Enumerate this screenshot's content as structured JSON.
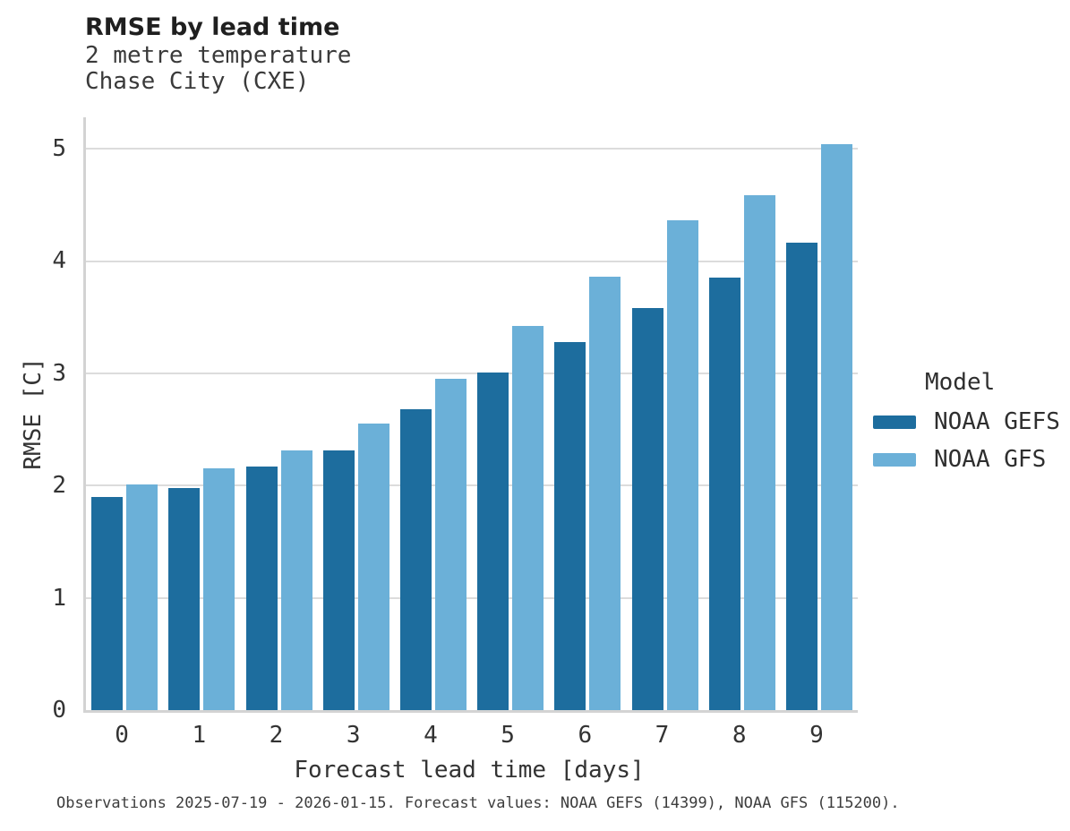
{
  "header": {
    "title": "RMSE by lead time",
    "subtitle_line1": "2 metre temperature",
    "subtitle_line2": "Chase City (CXE)"
  },
  "legend": {
    "title": "Model",
    "items": [
      {
        "label": "NOAA GEFS",
        "color": "#1d6d9e"
      },
      {
        "label": "NOAA GFS",
        "color": "#6bb0d8"
      }
    ]
  },
  "footer_note": "Observations 2025-07-19 - 2026-01-15. Forecast values: NOAA GEFS (14399), NOAA GFS (115200).",
  "colors": {
    "gefs_bar": "#1d6d9e",
    "gfs_bar": "#6bb0d8",
    "gridline": "#dcdcdc",
    "spine": "#d3d3d3",
    "text": "#2e2e2e"
  },
  "chart_data": {
    "type": "bar",
    "title": "RMSE by lead time",
    "subtitle": [
      "2 metre temperature",
      "Chase City (CXE)"
    ],
    "xlabel": "Forecast lead time [days]",
    "ylabel": "RMSE [C]",
    "categories": [
      "0",
      "1",
      "2",
      "3",
      "4",
      "5",
      "6",
      "7",
      "8",
      "9"
    ],
    "series": [
      {
        "name": "NOAA GEFS",
        "color": "#1d6d9e",
        "values": [
          1.9,
          1.98,
          2.17,
          2.31,
          2.68,
          3.01,
          3.28,
          3.58,
          3.85,
          4.16
        ]
      },
      {
        "name": "NOAA GFS",
        "color": "#6bb0d8",
        "values": [
          2.01,
          2.15,
          2.31,
          2.55,
          2.95,
          3.42,
          3.86,
          4.36,
          4.59,
          5.04
        ]
      }
    ],
    "ylim": [
      0,
      5.28
    ],
    "yticks": [
      0,
      1,
      2,
      3,
      4,
      5
    ],
    "grid": true,
    "legend_title": "Model",
    "legend_position": "right"
  }
}
